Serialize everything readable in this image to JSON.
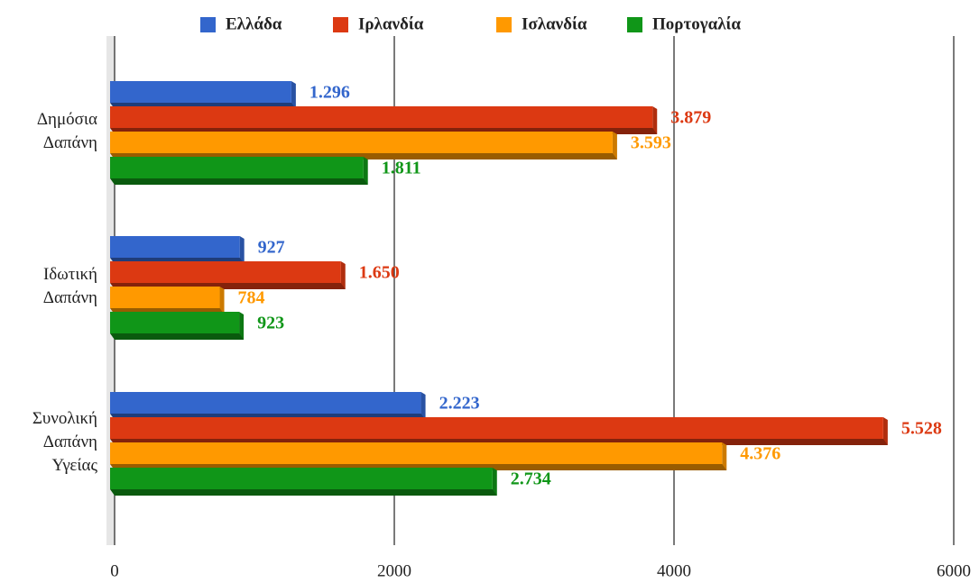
{
  "chart_data": {
    "type": "bar",
    "orientation": "horizontal",
    "categories": [
      "Δημόσια Δαπάνη",
      "Ιδωτική Δαπάνη",
      "Συνολική Δαπάνη Υγείας"
    ],
    "series": [
      {
        "name": "Ελλάδα",
        "color": "#3366cc",
        "values": [
          1296,
          927,
          2223
        ],
        "value_labels": [
          "1.296",
          "927",
          "2.223"
        ]
      },
      {
        "name": "Ιρλανδία",
        "color": "#dc3912",
        "values": [
          3879,
          1650,
          5528
        ],
        "value_labels": [
          "3.879",
          "1.650",
          "5.528"
        ]
      },
      {
        "name": "Ισλανδία",
        "color": "#ff9900",
        "values": [
          3593,
          784,
          4376
        ],
        "value_labels": [
          "3.593",
          "784",
          "4.376"
        ]
      },
      {
        "name": "Πορτογαλία",
        "color": "#109618",
        "values": [
          1811,
          923,
          2734
        ],
        "value_labels": [
          "1.811",
          "923",
          "2.734"
        ]
      }
    ],
    "xlim": [
      0,
      6000
    ],
    "xticks": [
      0,
      2000,
      4000,
      6000
    ],
    "grid": true,
    "legend": "top"
  }
}
